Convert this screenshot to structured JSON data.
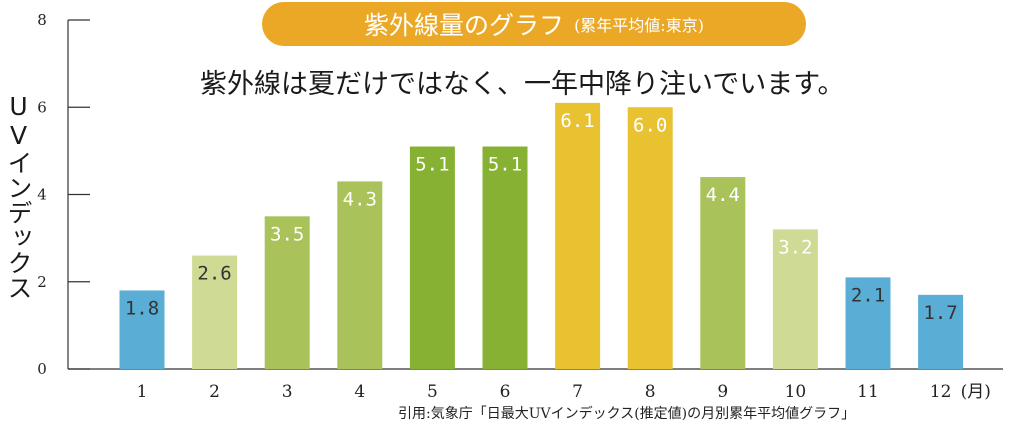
{
  "title": {
    "main": "紫外線量のグラフ",
    "sub": "(累年平均値:東京)"
  },
  "subtitle": "紫外線は夏だけではなく、一年中降り注いでいます。",
  "source": "引用:気象庁「日最大UVインデックス(推定値)の月別累年平均値グラフ」",
  "chart_data": {
    "type": "bar",
    "categories": [
      "1",
      "2",
      "3",
      "4",
      "5",
      "6",
      "7",
      "8",
      "9",
      "10",
      "11",
      "12"
    ],
    "values": [
      1.8,
      2.6,
      3.5,
      4.3,
      5.1,
      5.1,
      6.1,
      6.0,
      4.4,
      3.2,
      2.1,
      1.7
    ],
    "labels": [
      "1.8",
      "2.6",
      "3.5",
      "4.3",
      "5.1",
      "5.1",
      "6.1",
      "6.0",
      "4.4",
      "3.2",
      "2.1",
      "1.7"
    ],
    "colors": [
      "#5aaed6",
      "#cfda94",
      "#a9c35a",
      "#a9c35a",
      "#86b133",
      "#86b133",
      "#e9c232",
      "#e9c232",
      "#a9c35a",
      "#cfda94",
      "#5aaed6",
      "#5aaed6"
    ],
    "label_colors": [
      "#333333",
      "#333333",
      "#ffffff",
      "#ffffff",
      "#ffffff",
      "#ffffff",
      "#ffffff",
      "#ffffff",
      "#ffffff",
      "#ffffff",
      "#333333",
      "#333333"
    ],
    "yticks": [
      0,
      2,
      4,
      6,
      8
    ],
    "ylim": [
      0,
      8
    ],
    "ylabel": "UVインデックス",
    "xunit": "(月)",
    "grid": false
  }
}
